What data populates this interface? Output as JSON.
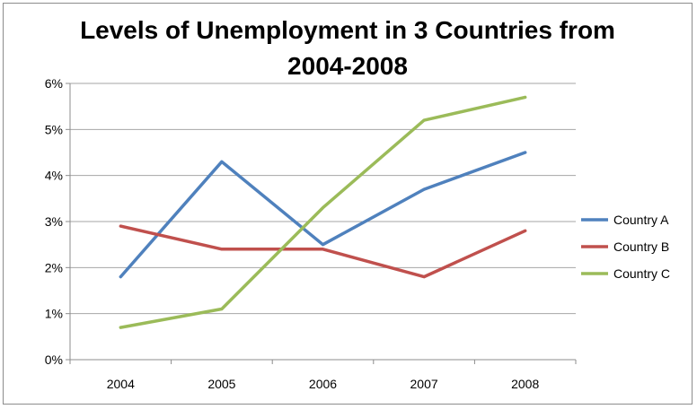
{
  "chart_data": {
    "type": "line",
    "title": "Levels of Unemployment in 3 Countries from\n2004-2008",
    "xlabel": "",
    "ylabel": "",
    "categories": [
      "2004",
      "2005",
      "2006",
      "2007",
      "2008"
    ],
    "yticks": [
      "0%",
      "1%",
      "2%",
      "3%",
      "4%",
      "5%",
      "6%"
    ],
    "ylim": [
      0,
      6
    ],
    "grid": true,
    "legend_position": "right",
    "series": [
      {
        "name": "Country A",
        "color": "#4f81bd",
        "values": [
          1.8,
          4.3,
          2.5,
          3.7,
          4.5
        ]
      },
      {
        "name": "Country B",
        "color": "#c0504d",
        "values": [
          2.9,
          2.4,
          2.4,
          1.8,
          2.8
        ]
      },
      {
        "name": "Country C",
        "color": "#9bbb59",
        "values": [
          0.7,
          1.1,
          3.3,
          5.2,
          5.7
        ]
      }
    ]
  }
}
